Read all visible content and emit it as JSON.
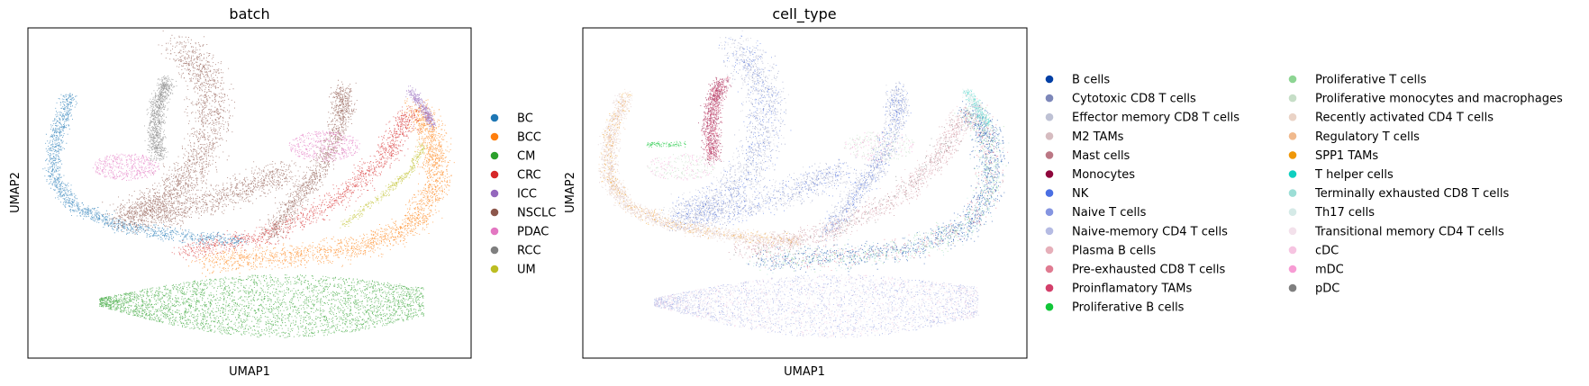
{
  "chart_data": [
    {
      "type": "scatter",
      "title": "batch",
      "xlabel": "UMAP1",
      "ylabel": "UMAP2",
      "grid": false,
      "legend_placement": "right",
      "series": [
        {
          "name": "BC",
          "color": "#1f77b4",
          "region": "left arm"
        },
        {
          "name": "BCC",
          "color": "#ff7f0e",
          "region": "right fan"
        },
        {
          "name": "CM",
          "color": "#2ca02c",
          "region": "bottom band"
        },
        {
          "name": "CRC",
          "color": "#d62728",
          "region": "mid fan"
        },
        {
          "name": "ICC",
          "color": "#9467bd",
          "region": "right tip"
        },
        {
          "name": "NSCLC",
          "color": "#8c564b",
          "region": "central mass"
        },
        {
          "name": "PDAC",
          "color": "#e377c2",
          "region": "pink islands"
        },
        {
          "name": "RCC",
          "color": "#7f7f7f",
          "region": "upper left lobe"
        },
        {
          "name": "UM",
          "color": "#bcbd22",
          "region": "right strand"
        }
      ]
    },
    {
      "type": "scatter",
      "title": "cell_type",
      "xlabel": "UMAP1",
      "ylabel": "UMAP2",
      "grid": false,
      "legend_placement": "right (two columns)",
      "series": [
        {
          "name": "B cells",
          "color": "#023fa5"
        },
        {
          "name": "Cytotoxic CD8 T cells",
          "color": "#7d87b9"
        },
        {
          "name": "Effector memory CD8 T cells",
          "color": "#bec1d4"
        },
        {
          "name": "M2 TAMs",
          "color": "#d6bcc0"
        },
        {
          "name": "Mast cells",
          "color": "#bb7784"
        },
        {
          "name": "Monocytes",
          "color": "#8e063b"
        },
        {
          "name": "NK",
          "color": "#4a6fe3"
        },
        {
          "name": "Naive T cells",
          "color": "#8595e1"
        },
        {
          "name": "Naive-memory CD4 T cells",
          "color": "#b5bbe3"
        },
        {
          "name": "Plasma B cells",
          "color": "#e6afb9"
        },
        {
          "name": "Pre-exhausted CD8 T cells",
          "color": "#e07b91"
        },
        {
          "name": "Proinflamatory TAMs",
          "color": "#d33f6a"
        },
        {
          "name": "Proliferative B cells",
          "color": "#11c638"
        },
        {
          "name": "Proliferative T cells",
          "color": "#8dd593"
        },
        {
          "name": "Proliferative monocytes and macrophages",
          "color": "#c6dec7"
        },
        {
          "name": "Recently activated CD4 T cells",
          "color": "#ead3c6"
        },
        {
          "name": "Regulatory T cells",
          "color": "#f0b98d"
        },
        {
          "name": "SPP1 TAMs",
          "color": "#ef9708"
        },
        {
          "name": "T helper cells",
          "color": "#0fcfc0"
        },
        {
          "name": "Terminally exhausted CD8 T cells",
          "color": "#9cded6"
        },
        {
          "name": "Th17 cells",
          "color": "#d5eae7"
        },
        {
          "name": "Transitional memory CD4 T cells",
          "color": "#f3e1eb"
        },
        {
          "name": "cDC",
          "color": "#f6c4e1"
        },
        {
          "name": "mDC",
          "color": "#f79cd4"
        },
        {
          "name": "pDC",
          "color": "#7f7f7f"
        }
      ]
    }
  ]
}
